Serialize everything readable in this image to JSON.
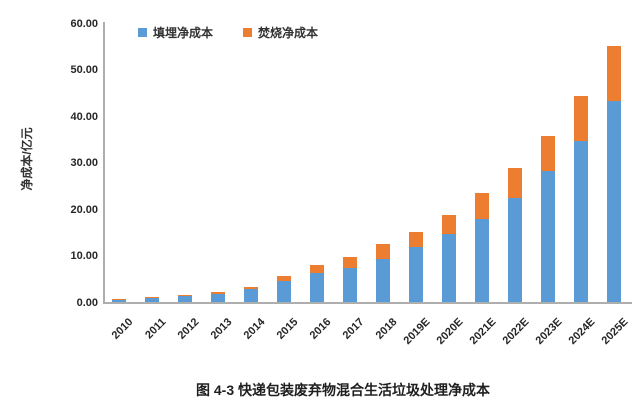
{
  "figure": {
    "caption": "图 4-3 快递包装废弃物混合生活垃圾处理净成本"
  },
  "chart_data": {
    "type": "bar",
    "stacked": true,
    "title": "图 4-3 快递包装废弃物混合生活垃圾处理净成本",
    "xlabel": "",
    "ylabel": "净成本/亿元",
    "ylim": [
      0,
      60
    ],
    "ytick_step": 10,
    "ytick_decimals": 2,
    "grid": false,
    "legend_position": "top",
    "categories": [
      "2010",
      "2011",
      "2012",
      "2013",
      "2014",
      "2015",
      "2016",
      "2017",
      "2018",
      "2019E",
      "2020E",
      "2021E",
      "2022E",
      "2023E",
      "2024E",
      "2025E"
    ],
    "series": [
      {
        "name": "填埋净成本",
        "color": "#5B9BD5",
        "values": [
          0.5,
          0.8,
          1.2,
          1.7,
          2.7,
          4.5,
          6.3,
          7.4,
          9.3,
          11.7,
          14.7,
          17.9,
          22.4,
          28.1,
          34.5,
          43.1
        ]
      },
      {
        "name": "焚烧净成本",
        "color": "#ED7D31",
        "values": [
          0.1,
          0.2,
          0.3,
          0.4,
          0.6,
          1.0,
          1.7,
          2.2,
          3.1,
          3.3,
          4.0,
          5.4,
          6.4,
          7.5,
          9.8,
          11.8
        ]
      }
    ]
  }
}
